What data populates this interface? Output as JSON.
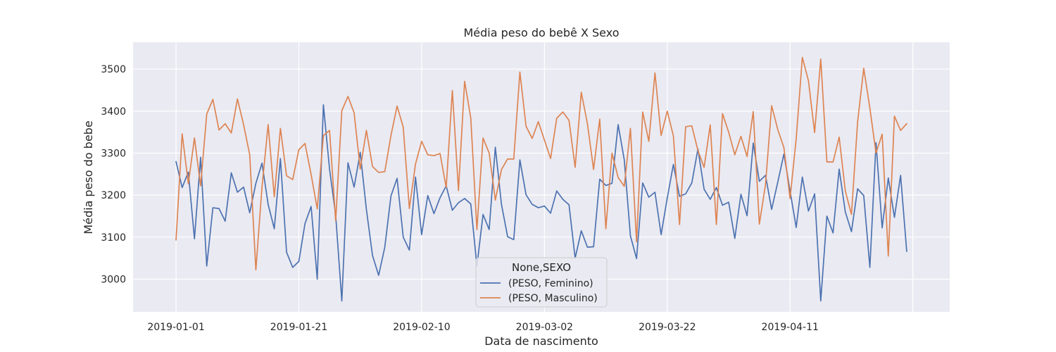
{
  "chart_data": {
    "type": "line",
    "title": "Média peso do bebê X Sexo",
    "xlabel": "Data de nascimento",
    "ylabel": "Média peso do bebe",
    "x_start": "2019-01-01",
    "x_end": "2019-04-30",
    "xlim": [
      "2018-12-25",
      "2019-05-07"
    ],
    "ylim": [
      2922,
      3564
    ],
    "x_ticks": [
      "2019-01-01",
      "2019-01-21",
      "2019-02-10",
      "2019-03-02",
      "2019-03-22",
      "2019-04-11"
    ],
    "y_ticks": [
      3000,
      3100,
      3200,
      3300,
      3400,
      3500
    ],
    "grid": true,
    "legend": {
      "title": "None,SEXO",
      "placement": "bottom-center"
    },
    "series": [
      {
        "name": "(PESO, Feminino)",
        "color": "#4c72b0",
        "values": [
          3280,
          3218,
          3255,
          3096,
          3290,
          3031,
          3170,
          3168,
          3138,
          3253,
          3207,
          3219,
          3158,
          3228,
          3276,
          3178,
          3120,
          3287,
          3064,
          3028,
          3042,
          3132,
          3173,
          3000,
          3415,
          3262,
          3152,
          2948,
          3277,
          3219,
          3302,
          3166,
          3056,
          3009,
          3076,
          3198,
          3240,
          3100,
          3069,
          3243,
          3106,
          3199,
          3156,
          3194,
          3222,
          3164,
          3182,
          3192,
          3179,
          3031,
          3154,
          3118,
          3314,
          3178,
          3101,
          3094,
          3284,
          3201,
          3178,
          3170,
          3174,
          3157,
          3210,
          3190,
          3177,
          3050,
          3115,
          3076,
          3077,
          3238,
          3223,
          3228,
          3368,
          3284,
          3103,
          3049,
          3229,
          3195,
          3207,
          3106,
          3193,
          3273,
          3197,
          3203,
          3229,
          3310,
          3214,
          3190,
          3218,
          3176,
          3183,
          3097,
          3202,
          3151,
          3324,
          3233,
          3247,
          3166,
          3231,
          3298,
          3210,
          3123,
          3243,
          3162,
          3203,
          2948,
          3150,
          3110,
          3262,
          3160,
          3113,
          3215,
          3199,
          3028,
          3325,
          3122,
          3241,
          3147,
          3247,
          3066
        ]
      },
      {
        "name": "(PESO, Masculino)",
        "color": "#dd8452",
        "values": [
          3093,
          3346,
          3227,
          3336,
          3222,
          3393,
          3428,
          3355,
          3370,
          3348,
          3429,
          3368,
          3296,
          3022,
          3219,
          3368,
          3196,
          3359,
          3246,
          3237,
          3308,
          3323,
          3249,
          3167,
          3342,
          3354,
          3139,
          3401,
          3435,
          3396,
          3262,
          3354,
          3268,
          3254,
          3256,
          3342,
          3412,
          3362,
          3168,
          3274,
          3328,
          3296,
          3294,
          3299,
          3218,
          3449,
          3211,
          3471,
          3384,
          3118,
          3336,
          3300,
          3188,
          3261,
          3286,
          3286,
          3493,
          3364,
          3335,
          3375,
          3331,
          3287,
          3383,
          3398,
          3378,
          3266,
          3445,
          3370,
          3261,
          3381,
          3120,
          3300,
          3242,
          3221,
          3359,
          3089,
          3398,
          3328,
          3491,
          3342,
          3400,
          3341,
          3130,
          3363,
          3365,
          3306,
          3266,
          3367,
          3130,
          3394,
          3350,
          3296,
          3340,
          3292,
          3399,
          3131,
          3225,
          3413,
          3356,
          3313,
          3192,
          3334,
          3528,
          3472,
          3349,
          3524,
          3279,
          3279,
          3338,
          3210,
          3154,
          3374,
          3502,
          3407,
          3300,
          3345,
          3055,
          3388,
          3354,
          3370
        ]
      }
    ]
  }
}
